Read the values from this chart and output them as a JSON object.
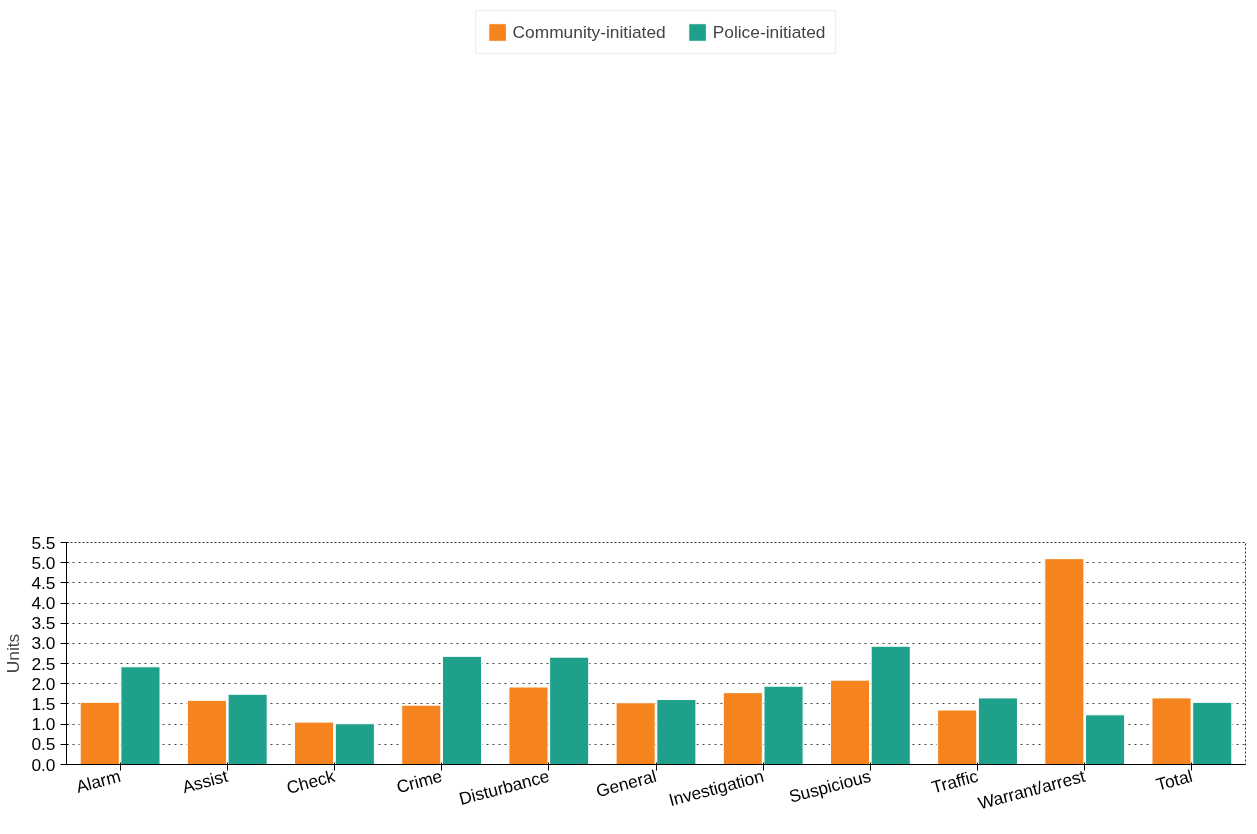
{
  "chart_data": {
    "type": "bar",
    "ylabel": "Units",
    "categories": [
      "Alarm",
      "Assist",
      "Check",
      "Crime",
      "Disturbance",
      "General",
      "Investigation",
      "Suspicious",
      "Traffic",
      "Warrant/arrest",
      "Total"
    ],
    "series": [
      {
        "name": "Community-initiated",
        "color": "#f5841f",
        "values": [
          1.54,
          1.59,
          1.05,
          1.47,
          1.92,
          1.53,
          1.78,
          2.09,
          1.35,
          5.1,
          1.65
        ]
      },
      {
        "name": "Police-initiated",
        "color": "#1fa08a",
        "values": [
          2.42,
          1.74,
          1.01,
          2.68,
          2.66,
          1.61,
          1.94,
          2.93,
          1.65,
          1.23,
          1.54
        ]
      }
    ],
    "ylim": [
      0,
      5.5
    ],
    "yticks": [
      {
        "value": 0,
        "label": "0.0"
      },
      0.5,
      {
        "value": 1,
        "label": "1.0"
      },
      1.5,
      {
        "value": 2,
        "label": "2.0"
      },
      2.5,
      {
        "value": 3,
        "label": "3.0"
      },
      3.5,
      {
        "value": 4,
        "label": "4.0"
      },
      4.5,
      {
        "value": 5,
        "label": "5.0"
      },
      5.5
    ],
    "grid": "y",
    "legend": "top"
  }
}
